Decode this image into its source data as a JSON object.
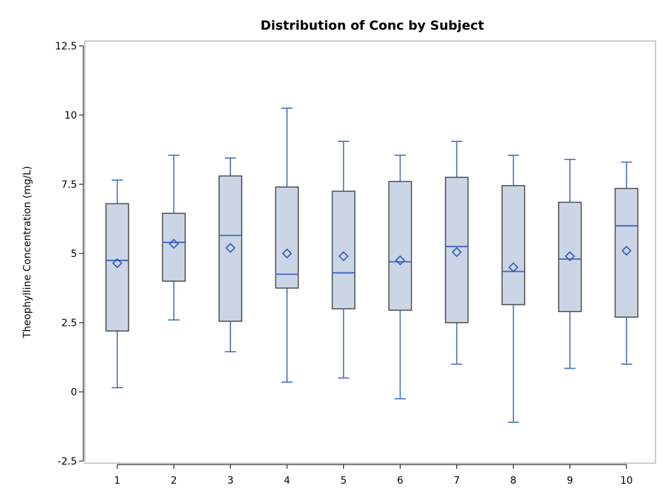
{
  "chart_data": {
    "type": "box",
    "title": "Distribution of Conc by Subject",
    "xlabel": "",
    "ylabel": "Theophylline Concentration (mg/L)",
    "ylim": [
      -2.6,
      12.7
    ],
    "yticks": [
      -2.5,
      0,
      2.5,
      5,
      7.5,
      10,
      12.5
    ],
    "ytick_labels": [
      "-2.5",
      "0",
      "2.5",
      "5",
      "7.5",
      "10",
      "12.5"
    ],
    "categories": [
      "1",
      "2",
      "3",
      "4",
      "5",
      "6",
      "7",
      "8",
      "9",
      "10"
    ],
    "boxes": [
      {
        "category": "1",
        "whisker_low": 0.15,
        "q1": 2.2,
        "median": 4.75,
        "q3": 6.8,
        "whisker_high": 7.65,
        "mean": 4.65
      },
      {
        "category": "2",
        "whisker_low": 2.6,
        "q1": 4.0,
        "median": 5.4,
        "q3": 6.45,
        "whisker_high": 8.55,
        "mean": 5.35
      },
      {
        "category": "3",
        "whisker_low": 1.45,
        "q1": 2.55,
        "median": 5.65,
        "q3": 7.8,
        "whisker_high": 8.45,
        "mean": 5.2
      },
      {
        "category": "4",
        "whisker_low": 0.35,
        "q1": 3.75,
        "median": 4.25,
        "q3": 7.4,
        "whisker_high": 10.25,
        "mean": 5.0
      },
      {
        "category": "5",
        "whisker_low": 0.5,
        "q1": 3.0,
        "median": 4.3,
        "q3": 7.25,
        "whisker_high": 9.05,
        "mean": 4.9
      },
      {
        "category": "6",
        "whisker_low": -0.25,
        "q1": 2.95,
        "median": 4.7,
        "q3": 7.6,
        "whisker_high": 8.55,
        "mean": 4.75
      },
      {
        "category": "7",
        "whisker_low": 1.0,
        "q1": 2.5,
        "median": 5.25,
        "q3": 7.75,
        "whisker_high": 9.05,
        "mean": 5.05
      },
      {
        "category": "8",
        "whisker_low": -1.1,
        "q1": 3.15,
        "median": 4.35,
        "q3": 7.45,
        "whisker_high": 8.55,
        "mean": 4.5
      },
      {
        "category": "9",
        "whisker_low": 0.85,
        "q1": 2.9,
        "median": 4.8,
        "q3": 6.85,
        "whisker_high": 8.4,
        "mean": 4.9
      },
      {
        "category": "10",
        "whisker_low": 1.0,
        "q1": 2.7,
        "median": 6.0,
        "q3": 7.35,
        "whisker_high": 8.3,
        "mean": 5.1
      }
    ],
    "grid": false,
    "legend": "none"
  }
}
